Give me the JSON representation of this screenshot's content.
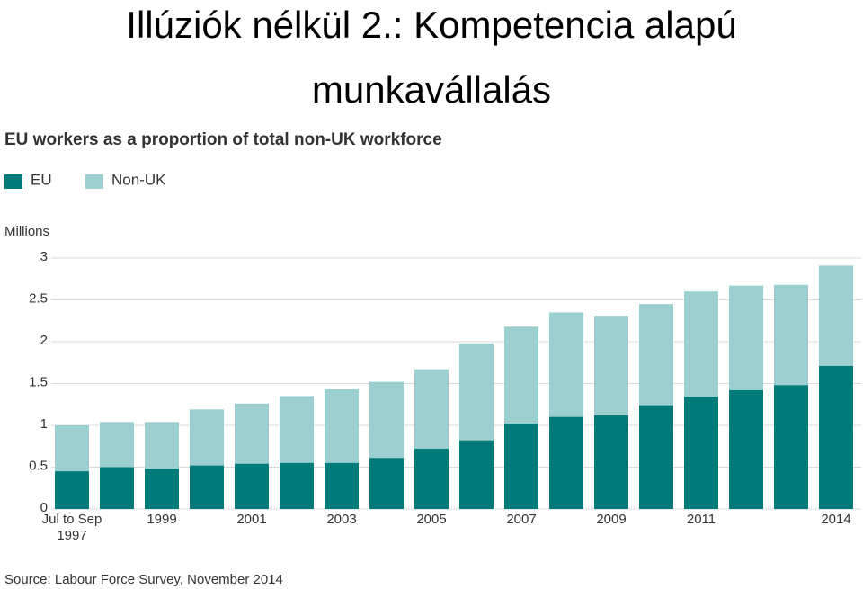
{
  "title": "Illúziók nélkül 2.: Kompetencia alapú munkavállalás",
  "chart_data": {
    "type": "bar",
    "title": "EU workers as a proportion of total non-UK workforce",
    "y_label": "Millions",
    "source": "Source: Labour Force Survey, November 2014",
    "categories": [
      "Jul to Sep 1997",
      null,
      "1999",
      null,
      "2001",
      null,
      "2003",
      null,
      "2005",
      null,
      "2007",
      null,
      "2009",
      null,
      "2011",
      null,
      null,
      "2014"
    ],
    "series": [
      {
        "name": "EU",
        "color": "#007b7a",
        "values": [
          0.45,
          0.5,
          0.48,
          0.52,
          0.54,
          0.55,
          0.55,
          0.61,
          0.72,
          0.82,
          1.02,
          1.1,
          1.12,
          1.24,
          1.34,
          1.42,
          1.48,
          1.71
        ]
      },
      {
        "name": "Non-UK",
        "color": "#9ccfd0",
        "values": [
          1.0,
          1.04,
          1.04,
          1.19,
          1.26,
          1.35,
          1.43,
          1.52,
          1.67,
          1.98,
          2.18,
          2.35,
          2.31,
          2.45,
          2.6,
          2.67,
          2.68,
          2.91
        ]
      }
    ],
    "overlay": true,
    "ylim": [
      0,
      3
    ],
    "yticks": [
      0,
      0.5,
      1,
      1.5,
      2,
      2.5,
      3
    ],
    "grid": true,
    "legend": "top-left"
  }
}
